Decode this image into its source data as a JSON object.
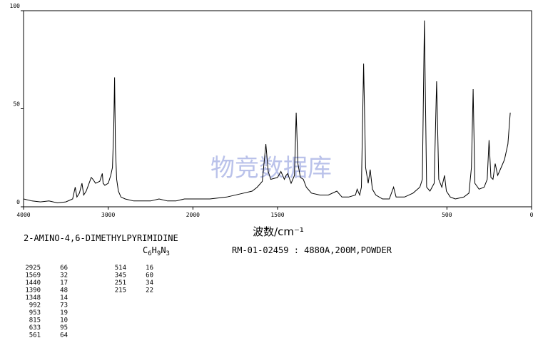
{
  "chart_data": {
    "type": "line",
    "title": "2-AMINO-4,6-DIMETHYLPYRIMIDINE",
    "formula": [
      "C",
      "6",
      "H",
      "9",
      "N",
      "3"
    ],
    "sample_info": "RM-01-02459 : 4880A,200M,POWDER",
    "x_label": "波数/cm⁻¹",
    "watermark": "物竞数据库",
    "xlim": [
      4000,
      0
    ],
    "x_scale_break": 2000,
    "xticks": [
      4000,
      3000,
      2000,
      1500,
      500,
      0
    ],
    "ylim": [
      0,
      100
    ],
    "yticks": [
      0,
      50,
      100
    ],
    "color": "#000000",
    "x": [
      4000,
      3900,
      3800,
      3700,
      3600,
      3500,
      3420,
      3390,
      3370,
      3340,
      3310,
      3290,
      3260,
      3200,
      3180,
      3150,
      3100,
      3070,
      3060,
      3040,
      3000,
      2970,
      2950,
      2935,
      2925,
      2915,
      2900,
      2880,
      2850,
      2800,
      2700,
      2600,
      2500,
      2400,
      2300,
      2200,
      2100,
      2000,
      1900,
      1800,
      1700,
      1650,
      1620,
      1590,
      1569,
      1555,
      1540,
      1500,
      1480,
      1460,
      1450,
      1440,
      1420,
      1400,
      1390,
      1380,
      1365,
      1348,
      1330,
      1300,
      1250,
      1200,
      1150,
      1120,
      1080,
      1040,
      1030,
      1015,
      1005,
      992,
      980,
      965,
      953,
      940,
      920,
      880,
      840,
      815,
      800,
      750,
      700,
      660,
      645,
      633,
      620,
      600,
      575,
      561,
      548,
      530,
      514,
      503,
      480,
      450,
      400,
      370,
      355,
      345,
      335,
      310,
      280,
      262,
      251,
      240,
      228,
      215,
      200,
      180,
      160,
      140,
      126
    ],
    "values": [
      4,
      3,
      2.5,
      3,
      2,
      2.5,
      4,
      10,
      5,
      7,
      12,
      6,
      8,
      15,
      14,
      12,
      13,
      17,
      12,
      11,
      12,
      16,
      20,
      40,
      66,
      30,
      14,
      8,
      5,
      4,
      3,
      3,
      3,
      4,
      3,
      3,
      4,
      4,
      4,
      5,
      7,
      8,
      10,
      13,
      32,
      18,
      14,
      15,
      18,
      14,
      16,
      17,
      12,
      16,
      48,
      22,
      15,
      14,
      10,
      7,
      6,
      6,
      8,
      5,
      5,
      6,
      9,
      6,
      10,
      73,
      20,
      12,
      19,
      9,
      6,
      4,
      4,
      10,
      5,
      5,
      7,
      10,
      14,
      95,
      10,
      8,
      12,
      64,
      14,
      10,
      16,
      8,
      5,
      4,
      5,
      7,
      20,
      60,
      12,
      9,
      10,
      14,
      34,
      15,
      14,
      22,
      16,
      20,
      24,
      32,
      48
    ],
    "peak_table": [
      [
        2925,
        66
      ],
      [
        1569,
        32
      ],
      [
        1440,
        17
      ],
      [
        1390,
        48
      ],
      [
        1348,
        14
      ],
      [
        992,
        73
      ],
      [
        953,
        19
      ],
      [
        815,
        10
      ],
      [
        633,
        95
      ],
      [
        561,
        64
      ],
      [
        514,
        16
      ],
      [
        345,
        60
      ],
      [
        251,
        34
      ],
      [
        215,
        22
      ]
    ]
  }
}
